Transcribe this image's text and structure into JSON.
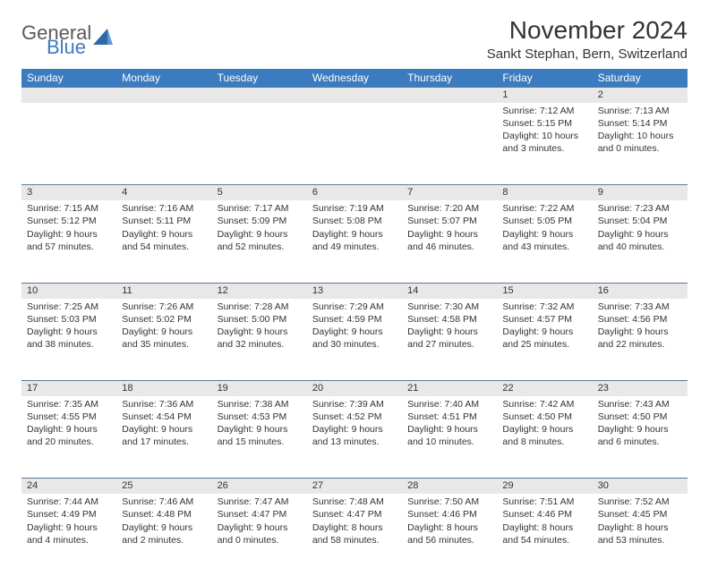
{
  "brand": {
    "general": "General",
    "blue": "Blue"
  },
  "title": "November 2024",
  "location": "Sankt Stephan, Bern, Switzerland",
  "colors": {
    "header_bg": "#3b7bbf",
    "header_text": "#ffffff",
    "daynum_bg": "#e8e8e8",
    "border": "#5a7a9c",
    "text": "#333333",
    "background": "#ffffff",
    "logo_gray": "#5a5a5a",
    "logo_blue": "#3b7bbf"
  },
  "day_headers": [
    "Sunday",
    "Monday",
    "Tuesday",
    "Wednesday",
    "Thursday",
    "Friday",
    "Saturday"
  ],
  "weeks": [
    [
      null,
      null,
      null,
      null,
      null,
      {
        "n": "1",
        "sunrise": "Sunrise: 7:12 AM",
        "sunset": "Sunset: 5:15 PM",
        "daylight": "Daylight: 10 hours and 3 minutes."
      },
      {
        "n": "2",
        "sunrise": "Sunrise: 7:13 AM",
        "sunset": "Sunset: 5:14 PM",
        "daylight": "Daylight: 10 hours and 0 minutes."
      }
    ],
    [
      {
        "n": "3",
        "sunrise": "Sunrise: 7:15 AM",
        "sunset": "Sunset: 5:12 PM",
        "daylight": "Daylight: 9 hours and 57 minutes."
      },
      {
        "n": "4",
        "sunrise": "Sunrise: 7:16 AM",
        "sunset": "Sunset: 5:11 PM",
        "daylight": "Daylight: 9 hours and 54 minutes."
      },
      {
        "n": "5",
        "sunrise": "Sunrise: 7:17 AM",
        "sunset": "Sunset: 5:09 PM",
        "daylight": "Daylight: 9 hours and 52 minutes."
      },
      {
        "n": "6",
        "sunrise": "Sunrise: 7:19 AM",
        "sunset": "Sunset: 5:08 PM",
        "daylight": "Daylight: 9 hours and 49 minutes."
      },
      {
        "n": "7",
        "sunrise": "Sunrise: 7:20 AM",
        "sunset": "Sunset: 5:07 PM",
        "daylight": "Daylight: 9 hours and 46 minutes."
      },
      {
        "n": "8",
        "sunrise": "Sunrise: 7:22 AM",
        "sunset": "Sunset: 5:05 PM",
        "daylight": "Daylight: 9 hours and 43 minutes."
      },
      {
        "n": "9",
        "sunrise": "Sunrise: 7:23 AM",
        "sunset": "Sunset: 5:04 PM",
        "daylight": "Daylight: 9 hours and 40 minutes."
      }
    ],
    [
      {
        "n": "10",
        "sunrise": "Sunrise: 7:25 AM",
        "sunset": "Sunset: 5:03 PM",
        "daylight": "Daylight: 9 hours and 38 minutes."
      },
      {
        "n": "11",
        "sunrise": "Sunrise: 7:26 AM",
        "sunset": "Sunset: 5:02 PM",
        "daylight": "Daylight: 9 hours and 35 minutes."
      },
      {
        "n": "12",
        "sunrise": "Sunrise: 7:28 AM",
        "sunset": "Sunset: 5:00 PM",
        "daylight": "Daylight: 9 hours and 32 minutes."
      },
      {
        "n": "13",
        "sunrise": "Sunrise: 7:29 AM",
        "sunset": "Sunset: 4:59 PM",
        "daylight": "Daylight: 9 hours and 30 minutes."
      },
      {
        "n": "14",
        "sunrise": "Sunrise: 7:30 AM",
        "sunset": "Sunset: 4:58 PM",
        "daylight": "Daylight: 9 hours and 27 minutes."
      },
      {
        "n": "15",
        "sunrise": "Sunrise: 7:32 AM",
        "sunset": "Sunset: 4:57 PM",
        "daylight": "Daylight: 9 hours and 25 minutes."
      },
      {
        "n": "16",
        "sunrise": "Sunrise: 7:33 AM",
        "sunset": "Sunset: 4:56 PM",
        "daylight": "Daylight: 9 hours and 22 minutes."
      }
    ],
    [
      {
        "n": "17",
        "sunrise": "Sunrise: 7:35 AM",
        "sunset": "Sunset: 4:55 PM",
        "daylight": "Daylight: 9 hours and 20 minutes."
      },
      {
        "n": "18",
        "sunrise": "Sunrise: 7:36 AM",
        "sunset": "Sunset: 4:54 PM",
        "daylight": "Daylight: 9 hours and 17 minutes."
      },
      {
        "n": "19",
        "sunrise": "Sunrise: 7:38 AM",
        "sunset": "Sunset: 4:53 PM",
        "daylight": "Daylight: 9 hours and 15 minutes."
      },
      {
        "n": "20",
        "sunrise": "Sunrise: 7:39 AM",
        "sunset": "Sunset: 4:52 PM",
        "daylight": "Daylight: 9 hours and 13 minutes."
      },
      {
        "n": "21",
        "sunrise": "Sunrise: 7:40 AM",
        "sunset": "Sunset: 4:51 PM",
        "daylight": "Daylight: 9 hours and 10 minutes."
      },
      {
        "n": "22",
        "sunrise": "Sunrise: 7:42 AM",
        "sunset": "Sunset: 4:50 PM",
        "daylight": "Daylight: 9 hours and 8 minutes."
      },
      {
        "n": "23",
        "sunrise": "Sunrise: 7:43 AM",
        "sunset": "Sunset: 4:50 PM",
        "daylight": "Daylight: 9 hours and 6 minutes."
      }
    ],
    [
      {
        "n": "24",
        "sunrise": "Sunrise: 7:44 AM",
        "sunset": "Sunset: 4:49 PM",
        "daylight": "Daylight: 9 hours and 4 minutes."
      },
      {
        "n": "25",
        "sunrise": "Sunrise: 7:46 AM",
        "sunset": "Sunset: 4:48 PM",
        "daylight": "Daylight: 9 hours and 2 minutes."
      },
      {
        "n": "26",
        "sunrise": "Sunrise: 7:47 AM",
        "sunset": "Sunset: 4:47 PM",
        "daylight": "Daylight: 9 hours and 0 minutes."
      },
      {
        "n": "27",
        "sunrise": "Sunrise: 7:48 AM",
        "sunset": "Sunset: 4:47 PM",
        "daylight": "Daylight: 8 hours and 58 minutes."
      },
      {
        "n": "28",
        "sunrise": "Sunrise: 7:50 AM",
        "sunset": "Sunset: 4:46 PM",
        "daylight": "Daylight: 8 hours and 56 minutes."
      },
      {
        "n": "29",
        "sunrise": "Sunrise: 7:51 AM",
        "sunset": "Sunset: 4:46 PM",
        "daylight": "Daylight: 8 hours and 54 minutes."
      },
      {
        "n": "30",
        "sunrise": "Sunrise: 7:52 AM",
        "sunset": "Sunset: 4:45 PM",
        "daylight": "Daylight: 8 hours and 53 minutes."
      }
    ]
  ]
}
